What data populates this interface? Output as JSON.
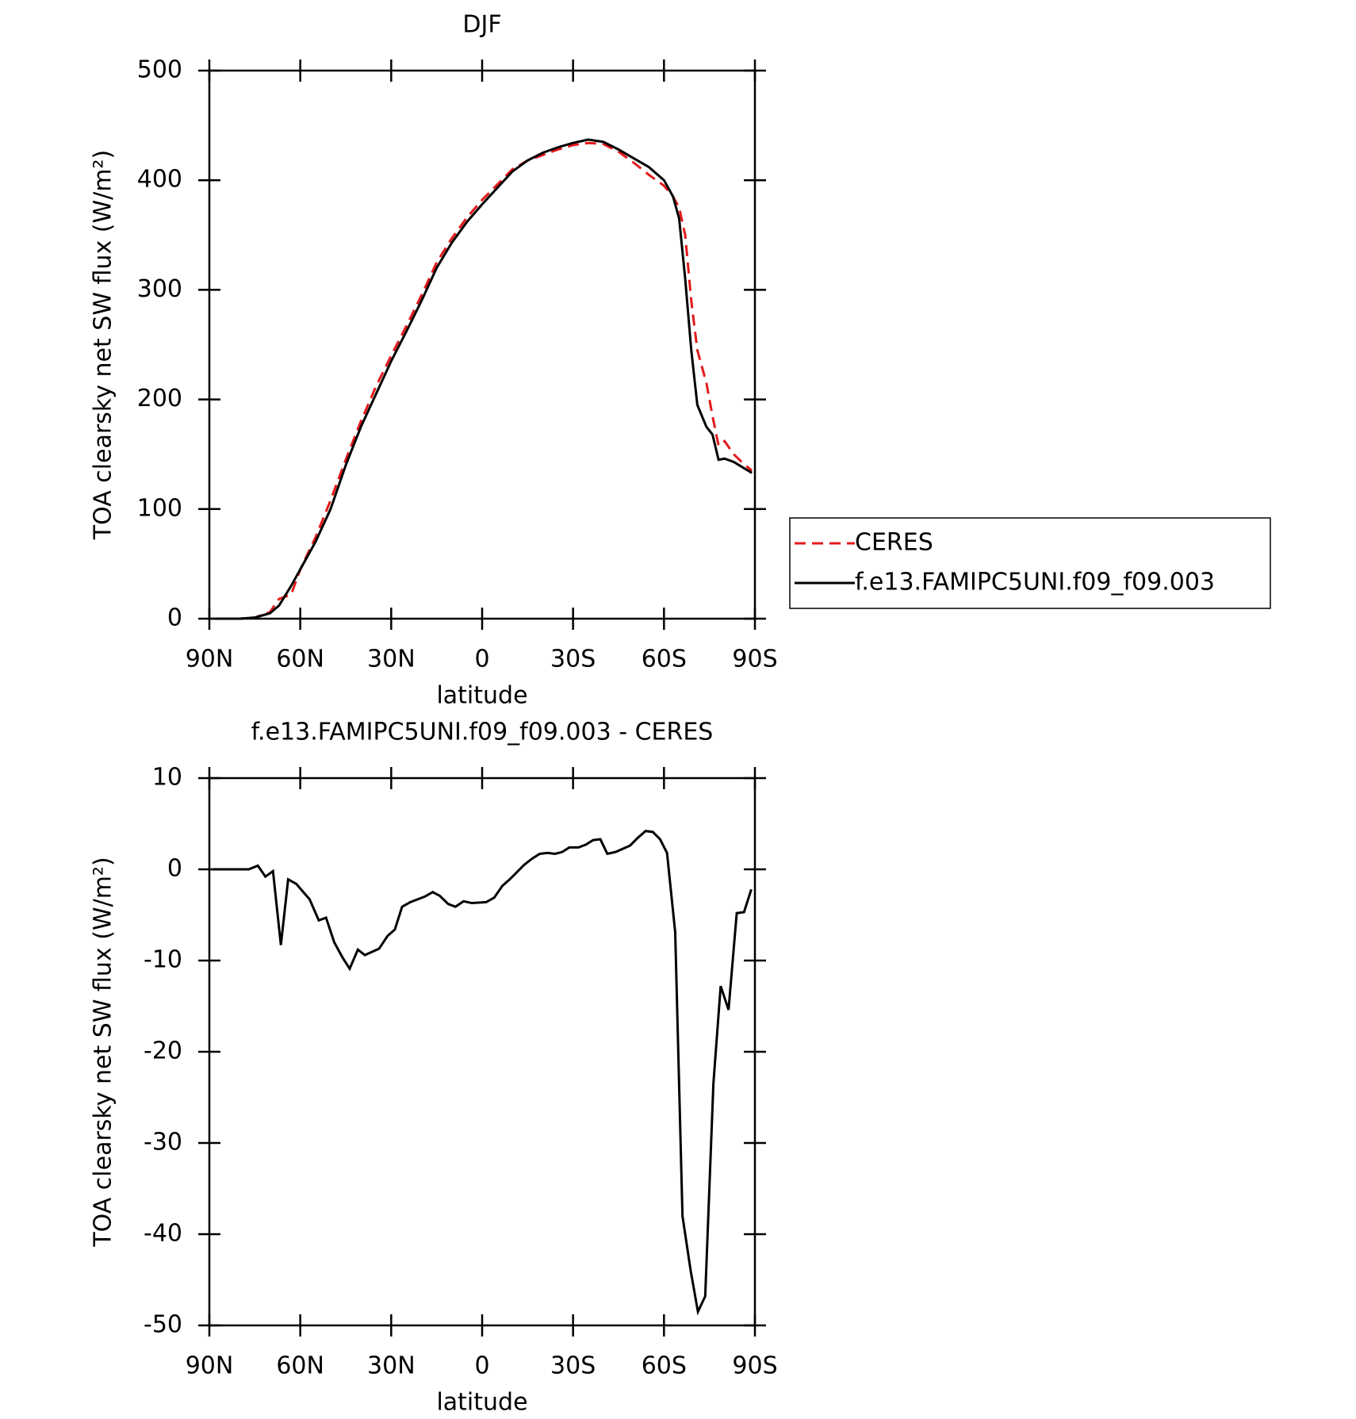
{
  "chart_data": [
    {
      "type": "line",
      "title": "DJF",
      "x": [
        88,
        80,
        75,
        70,
        67,
        63,
        60,
        55,
        50,
        45,
        40,
        35,
        30,
        25,
        20,
        15,
        10,
        5,
        0,
        -5,
        -10,
        -15,
        -20,
        -25,
        -30,
        -35,
        -40,
        -45,
        -50,
        -55,
        -60,
        -63,
        -65,
        -67,
        -69,
        -71,
        -74,
        -76,
        -78,
        -80,
        -83,
        -86,
        -89
      ],
      "series": [
        {
          "name": "CERES",
          "color": "#e31a1c",
          "dash": true,
          "values": [
            0,
            0,
            1,
            6,
            18,
            22,
            45,
            74,
            108,
            145,
            180,
            212,
            240,
            267,
            295,
            325,
            347,
            366,
            382,
            396,
            410,
            418,
            423,
            428,
            432,
            434,
            433,
            426,
            416,
            405,
            395,
            385,
            375,
            350,
            290,
            245,
            215,
            185,
            158,
            162,
            150,
            142,
            135
          ]
        },
        {
          "name": "f.e13.FAMIPC5UNI.f09_f09.003",
          "color": "#000000",
          "dash": false,
          "values": [
            0,
            0,
            1,
            5,
            12,
            30,
            45,
            70,
            100,
            140,
            175,
            205,
            235,
            262,
            290,
            320,
            343,
            362,
            378,
            393,
            408,
            418,
            425,
            430,
            434,
            437,
            435,
            428,
            420,
            412,
            400,
            385,
            365,
            310,
            245,
            195,
            175,
            168,
            145,
            146,
            143,
            138,
            133
          ]
        }
      ],
      "xlim": [
        90,
        -90
      ],
      "xticks": [
        {
          "value": 90,
          "label": "90N"
        },
        {
          "value": 60,
          "label": "60N"
        },
        {
          "value": 30,
          "label": "30N"
        },
        0,
        {
          "value": -30,
          "label": "30S"
        },
        {
          "value": -60,
          "label": "60S"
        },
        {
          "value": -90,
          "label": "90S"
        }
      ],
      "ylim": [
        0,
        500
      ],
      "yticks": [
        0,
        100,
        200,
        300,
        400,
        500
      ],
      "xlabel": "latitude",
      "ylabel": "TOA clearsky net SW flux (W/m²)",
      "legend": "outside-right"
    },
    {
      "type": "line",
      "title": "f.e13.FAMIPC5UNI.f09_f09.003 - CERES",
      "x": [
        89,
        77,
        74,
        71.5,
        69,
        66.4,
        64,
        61.3,
        56.9,
        53.9,
        51.5,
        48.8,
        46,
        43.7,
        41,
        38.7,
        34,
        31.2,
        28.8,
        26.4,
        23.7,
        19,
        16.3,
        14,
        11.2,
        8.8,
        6.1,
        3.4,
        -1.3,
        -4,
        -6.7,
        -9.1,
        -13.9,
        -16.6,
        -19,
        -21.6,
        -24,
        -26.4,
        -28.8,
        -31.8,
        -34.2,
        -36.6,
        -39,
        -41.3,
        -44,
        -48.8,
        -51.2,
        -53.9,
        -56.3,
        -58.7,
        -61,
        -63.7,
        -66.1,
        -68.8,
        -71.2,
        -73.6,
        -76.3,
        -78.7,
        -81.3,
        -84,
        -86.4,
        -88.8
      ],
      "series": [
        {
          "color": "#000000",
          "dash": false,
          "values": [
            0,
            0,
            0.4,
            -0.8,
            -0.2,
            -8.3,
            -1.1,
            -1.6,
            -3.3,
            -5.6,
            -5.3,
            -8,
            -9.7,
            -10.9,
            -8.8,
            -9.4,
            -8.7,
            -7.3,
            -6.6,
            -4.1,
            -3.6,
            -3,
            -2.5,
            -2.9,
            -3.8,
            -4.1,
            -3.5,
            -3.7,
            -3.6,
            -3.1,
            -1.8,
            -1.1,
            0.5,
            1.2,
            1.7,
            1.8,
            1.7,
            1.9,
            2.4,
            2.4,
            2.7,
            3.2,
            3.3,
            1.7,
            1.9,
            2.6,
            3.4,
            4.2,
            4.1,
            3.3,
            1.8,
            -6.9,
            -38,
            -44,
            -48.5,
            -46.8,
            -23.5,
            -12.8,
            -15.4,
            -4.8,
            -4.7,
            -2.2
          ]
        }
      ],
      "xlim": [
        90,
        -90
      ],
      "xticks": [
        {
          "value": 90,
          "label": "90N"
        },
        {
          "value": 60,
          "label": "60N"
        },
        {
          "value": 30,
          "label": "30N"
        },
        0,
        {
          "value": -30,
          "label": "30S"
        },
        {
          "value": -60,
          "label": "60S"
        },
        {
          "value": -90,
          "label": "90S"
        }
      ],
      "ylim": [
        -50,
        10
      ],
      "yticks": [
        -50,
        -40,
        -30,
        -20,
        -10,
        0,
        10
      ],
      "xlabel": "latitude",
      "ylabel": "TOA clearsky net SW flux (W/m²)"
    }
  ]
}
